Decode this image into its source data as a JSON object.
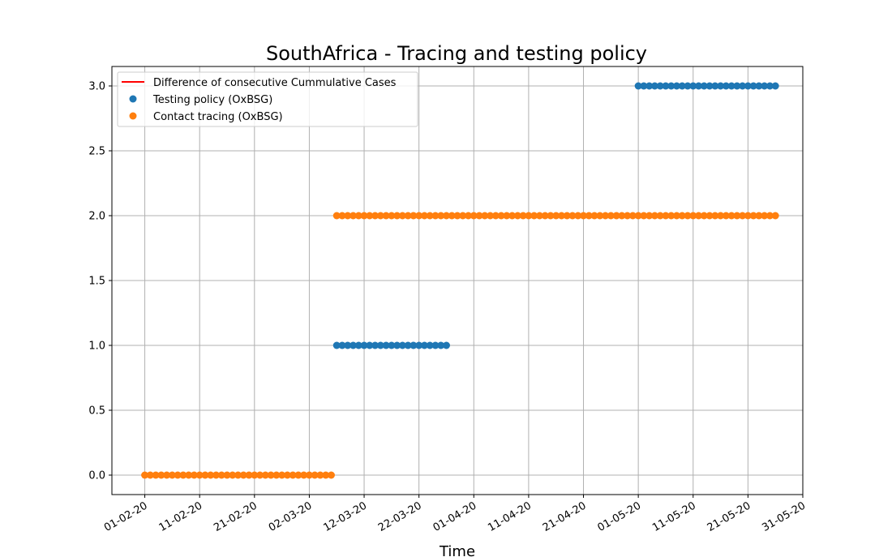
{
  "chart_data": {
    "type": "scatter",
    "title": "SouthAfrica - Tracing and testing policy",
    "xlabel": "Time",
    "ylabel": "",
    "x_ticks": [
      "01-02-20",
      "11-02-20",
      "21-02-20",
      "02-03-20",
      "12-03-20",
      "22-03-20",
      "01-04-20",
      "11-04-20",
      "21-04-20",
      "01-05-20",
      "11-05-20",
      "21-05-20",
      "31-05-20"
    ],
    "y_ticks": [
      0.0,
      0.5,
      1.0,
      1.5,
      2.0,
      2.5,
      3.0
    ],
    "y_tick_labels": [
      "0.0",
      "0.5",
      "1.0",
      "1.5",
      "2.0",
      "2.5",
      "3.0"
    ],
    "xlim": [
      "2020-01-26",
      "2020-05-31"
    ],
    "ylim": [
      -0.15,
      3.15
    ],
    "grid": true,
    "legend_position": "top-left",
    "legend": [
      {
        "label": "Difference of consecutive Cummulative Cases",
        "kind": "line",
        "color": "#ff0000"
      },
      {
        "label": "Testing policy (OxBSG)",
        "kind": "marker",
        "color": "#1f77b4"
      },
      {
        "label": "Contact tracing (OxBSG)",
        "kind": "marker",
        "color": "#ff7f0e"
      }
    ],
    "series": [
      {
        "name": "Difference of consecutive Cummulative Cases",
        "kind": "line",
        "color": "#ff0000",
        "points": []
      },
      {
        "name": "Testing policy (OxBSG)",
        "kind": "scatter",
        "color": "#1f77b4",
        "segments": [
          {
            "from": "2020-03-07",
            "to": "2020-03-27",
            "value": 1.0
          },
          {
            "from": "2020-05-01",
            "to": "2020-05-26",
            "value": 3.0
          }
        ]
      },
      {
        "name": "Contact tracing (OxBSG)",
        "kind": "scatter",
        "color": "#ff7f0e",
        "segments": [
          {
            "from": "2020-02-01",
            "to": "2020-03-06",
            "value": 0.0
          },
          {
            "from": "2020-03-07",
            "to": "2020-05-26",
            "value": 2.0
          }
        ]
      }
    ]
  }
}
